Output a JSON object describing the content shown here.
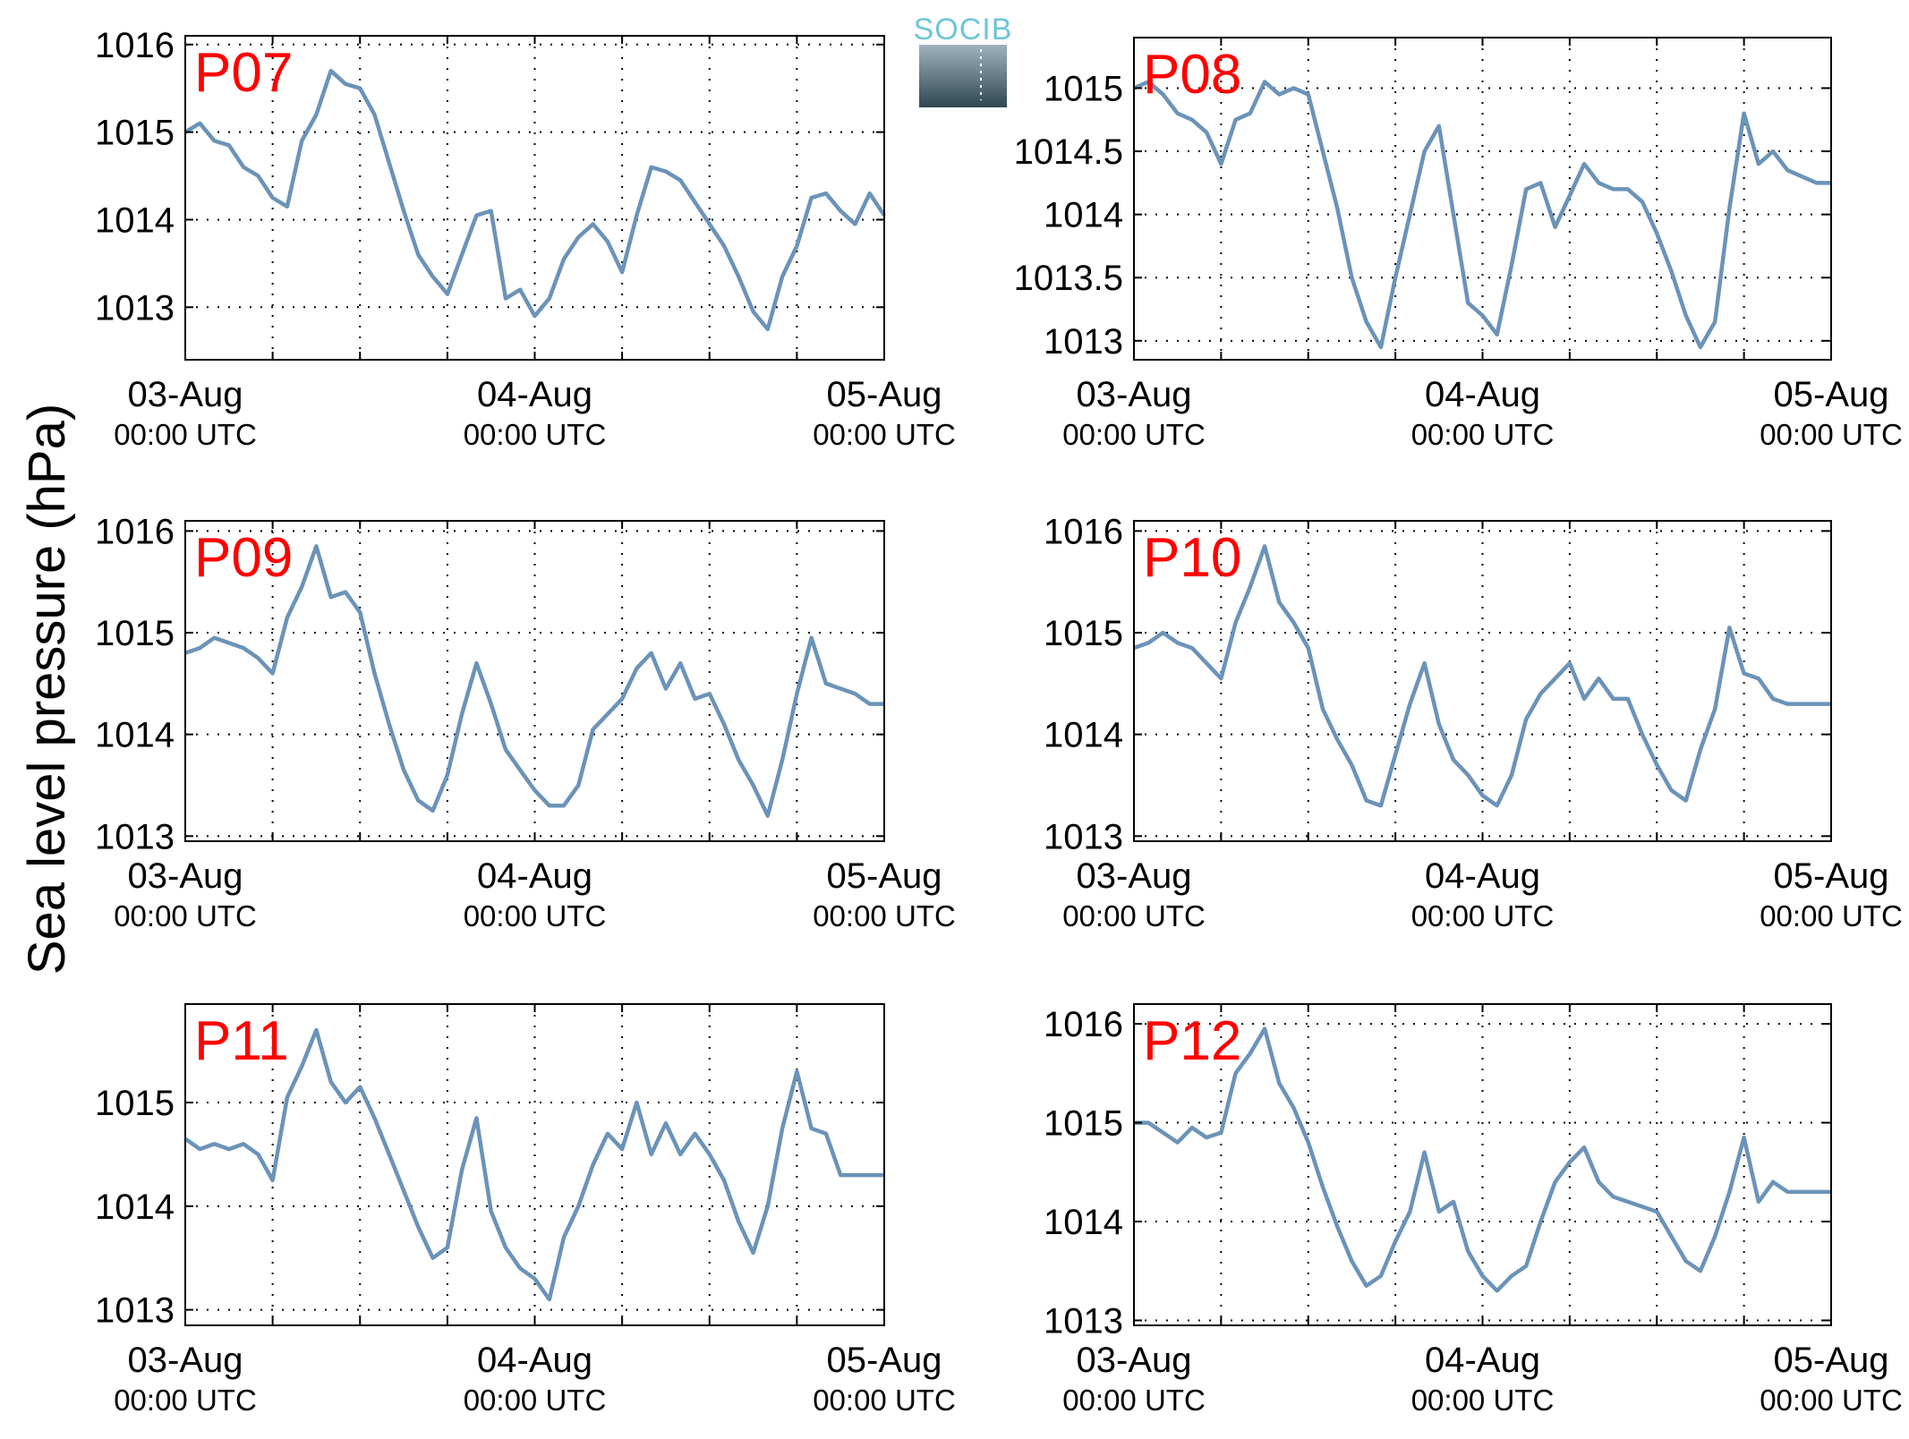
{
  "figure": {
    "ylabel": "Sea level pressure (hPa)",
    "logo_text": "SOCIB",
    "line_color": "#6b93b8",
    "label_color": "#ff0000"
  },
  "chart_data": [
    {
      "type": "line",
      "label": "P07",
      "x_ticks": [
        {
          "date": "03-Aug",
          "time": "00:00 UTC"
        },
        {
          "date": "04-Aug",
          "time": "00:00 UTC"
        },
        {
          "date": "05-Aug",
          "time": "00:00 UTC"
        }
      ],
      "xlim": [
        "2014-08-03T00:00",
        "2014-08-05T00:00"
      ],
      "yticks": [
        "1013",
        "1014",
        "1015",
        "1016"
      ],
      "ytick_values": [
        1013,
        1014,
        1015,
        1016
      ],
      "ylim": [
        1012.4,
        1016.1
      ],
      "grid": true,
      "x_hours": [
        0,
        1,
        2,
        3,
        4,
        5,
        6,
        7,
        8,
        9,
        10,
        11,
        12,
        13,
        14,
        15,
        16,
        17,
        18,
        19,
        20,
        21,
        22,
        23,
        24,
        25,
        26,
        27,
        28,
        29,
        30,
        31,
        32,
        33,
        34,
        35,
        36,
        37,
        38,
        39,
        40,
        41,
        42,
        43,
        44,
        45,
        46,
        47,
        48
      ],
      "y": [
        1015.0,
        1015.1,
        1014.9,
        1014.85,
        1014.6,
        1014.5,
        1014.25,
        1014.15,
        1014.9,
        1015.2,
        1015.7,
        1015.55,
        1015.5,
        1015.2,
        1014.65,
        1014.1,
        1013.6,
        1013.35,
        1013.15,
        1013.6,
        1014.05,
        1014.1,
        1013.1,
        1013.2,
        1012.9,
        1013.1,
        1013.55,
        1013.8,
        1013.95,
        1013.75,
        1013.4,
        1014.05,
        1014.6,
        1014.55,
        1014.45,
        1014.2,
        1013.95,
        1013.7,
        1013.35,
        1012.95,
        1012.75,
        1013.35,
        1013.7,
        1014.25,
        1014.3,
        1014.1,
        1013.95,
        1014.3,
        1014.05
      ]
    },
    {
      "type": "line",
      "label": "P08",
      "x_ticks": [
        {
          "date": "03-Aug",
          "time": "00:00 UTC"
        },
        {
          "date": "04-Aug",
          "time": "00:00 UTC"
        },
        {
          "date": "05-Aug",
          "time": "00:00 UTC"
        }
      ],
      "xlim": [
        "2014-08-03T00:00",
        "2014-08-05T00:00"
      ],
      "yticks": [
        "1013",
        "1013.5",
        "1014",
        "1014.5",
        "1015"
      ],
      "ytick_values": [
        1013,
        1013.5,
        1014,
        1014.5,
        1015
      ],
      "ylim": [
        1012.85,
        1015.4
      ],
      "grid": true,
      "x_hours": [
        0,
        1,
        2,
        3,
        4,
        5,
        6,
        7,
        8,
        9,
        10,
        11,
        12,
        13,
        14,
        15,
        16,
        17,
        18,
        19,
        20,
        21,
        22,
        23,
        24,
        25,
        26,
        27,
        28,
        29,
        30,
        31,
        32,
        33,
        34,
        35,
        36,
        37,
        38,
        39,
        40,
        41,
        42,
        43,
        44,
        45,
        46,
        47,
        48
      ],
      "y": [
        1015.0,
        1015.05,
        1014.95,
        1014.8,
        1014.75,
        1014.65,
        1014.4,
        1014.75,
        1014.8,
        1015.05,
        1014.95,
        1015.0,
        1014.95,
        1014.5,
        1014.05,
        1013.5,
        1013.15,
        1012.95,
        1013.5,
        1014.0,
        1014.5,
        1014.7,
        1014.0,
        1013.3,
        1013.2,
        1013.05,
        1013.6,
        1014.2,
        1014.25,
        1013.9,
        1014.15,
        1014.4,
        1014.25,
        1014.2,
        1014.2,
        1014.1,
        1013.85,
        1013.55,
        1013.2,
        1012.95,
        1013.15,
        1014.05,
        1014.8,
        1014.4,
        1014.5,
        1014.35,
        1014.3,
        1014.25,
        1014.25
      ]
    },
    {
      "type": "line",
      "label": "P09",
      "x_ticks": [
        {
          "date": "03-Aug",
          "time": "00:00 UTC"
        },
        {
          "date": "04-Aug",
          "time": "00:00 UTC"
        },
        {
          "date": "05-Aug",
          "time": "00:00 UTC"
        }
      ],
      "xlim": [
        "2014-08-03T00:00",
        "2014-08-05T00:00"
      ],
      "yticks": [
        "1013",
        "1014",
        "1015",
        "1016"
      ],
      "ytick_values": [
        1013,
        1014,
        1015,
        1016
      ],
      "ylim": [
        1012.95,
        1016.1
      ],
      "grid": true,
      "x_hours": [
        0,
        1,
        2,
        3,
        4,
        5,
        6,
        7,
        8,
        9,
        10,
        11,
        12,
        13,
        14,
        15,
        16,
        17,
        18,
        19,
        20,
        21,
        22,
        23,
        24,
        25,
        26,
        27,
        28,
        29,
        30,
        31,
        32,
        33,
        34,
        35,
        36,
        37,
        38,
        39,
        40,
        41,
        42,
        43,
        44,
        45,
        46,
        47,
        48
      ],
      "y": [
        1014.8,
        1014.85,
        1014.95,
        1014.9,
        1014.85,
        1014.75,
        1014.6,
        1015.15,
        1015.45,
        1015.85,
        1015.35,
        1015.4,
        1015.2,
        1014.6,
        1014.1,
        1013.65,
        1013.35,
        1013.25,
        1013.6,
        1014.2,
        1014.7,
        1014.3,
        1013.85,
        1013.65,
        1013.45,
        1013.3,
        1013.3,
        1013.5,
        1014.05,
        1014.2,
        1014.35,
        1014.65,
        1014.8,
        1014.45,
        1014.7,
        1014.35,
        1014.4,
        1014.1,
        1013.75,
        1013.5,
        1013.2,
        1013.75,
        1014.4,
        1014.95,
        1014.5,
        1014.45,
        1014.4,
        1014.3,
        1014.3
      ]
    },
    {
      "type": "line",
      "label": "P10",
      "x_ticks": [
        {
          "date": "03-Aug",
          "time": "00:00 UTC"
        },
        {
          "date": "04-Aug",
          "time": "00:00 UTC"
        },
        {
          "date": "05-Aug",
          "time": "00:00 UTC"
        }
      ],
      "xlim": [
        "2014-08-03T00:00",
        "2014-08-05T00:00"
      ],
      "yticks": [
        "1013",
        "1014",
        "1015",
        "1016"
      ],
      "ytick_values": [
        1013,
        1014,
        1015,
        1016
      ],
      "ylim": [
        1012.95,
        1016.1
      ],
      "grid": true,
      "x_hours": [
        0,
        1,
        2,
        3,
        4,
        5,
        6,
        7,
        8,
        9,
        10,
        11,
        12,
        13,
        14,
        15,
        16,
        17,
        18,
        19,
        20,
        21,
        22,
        23,
        24,
        25,
        26,
        27,
        28,
        29,
        30,
        31,
        32,
        33,
        34,
        35,
        36,
        37,
        38,
        39,
        40,
        41,
        42,
        43,
        44,
        45,
        46,
        47,
        48
      ],
      "y": [
        1014.85,
        1014.9,
        1015.0,
        1014.9,
        1014.85,
        1014.7,
        1014.55,
        1015.1,
        1015.45,
        1015.85,
        1015.3,
        1015.1,
        1014.85,
        1014.25,
        1013.95,
        1013.7,
        1013.35,
        1013.3,
        1013.8,
        1014.3,
        1014.7,
        1014.1,
        1013.75,
        1013.6,
        1013.4,
        1013.3,
        1013.6,
        1014.15,
        1014.4,
        1014.55,
        1014.7,
        1014.35,
        1014.55,
        1014.35,
        1014.35,
        1014.0,
        1013.7,
        1013.45,
        1013.35,
        1013.85,
        1014.25,
        1015.05,
        1014.6,
        1014.55,
        1014.35,
        1014.3,
        1014.3,
        1014.3,
        1014.3
      ]
    },
    {
      "type": "line",
      "label": "P11",
      "x_ticks": [
        {
          "date": "03-Aug",
          "time": "00:00 UTC"
        },
        {
          "date": "04-Aug",
          "time": "00:00 UTC"
        },
        {
          "date": "05-Aug",
          "time": "00:00 UTC"
        }
      ],
      "xlim": [
        "2014-08-03T00:00",
        "2014-08-05T00:00"
      ],
      "yticks": [
        "1013",
        "1014",
        "1015"
      ],
      "ytick_values": [
        1013,
        1014,
        1015
      ],
      "ylim": [
        1012.85,
        1015.95
      ],
      "grid": true,
      "x_hours": [
        0,
        1,
        2,
        3,
        4,
        5,
        6,
        7,
        8,
        9,
        10,
        11,
        12,
        13,
        14,
        15,
        16,
        17,
        18,
        19,
        20,
        21,
        22,
        23,
        24,
        25,
        26,
        27,
        28,
        29,
        30,
        31,
        32,
        33,
        34,
        35,
        36,
        37,
        38,
        39,
        40,
        41,
        42,
        43,
        44,
        45,
        46,
        47,
        48
      ],
      "y": [
        1014.65,
        1014.55,
        1014.6,
        1014.55,
        1014.6,
        1014.5,
        1014.25,
        1015.05,
        1015.35,
        1015.7,
        1015.2,
        1015.0,
        1015.15,
        1014.85,
        1014.5,
        1014.15,
        1013.8,
        1013.5,
        1013.6,
        1014.35,
        1014.85,
        1013.95,
        1013.6,
        1013.4,
        1013.3,
        1013.1,
        1013.7,
        1014.0,
        1014.4,
        1014.7,
        1014.55,
        1015.0,
        1014.5,
        1014.8,
        1014.5,
        1014.7,
        1014.5,
        1014.25,
        1013.85,
        1013.55,
        1014.0,
        1014.75,
        1015.3,
        1014.75,
        1014.7,
        1014.3,
        1014.3,
        1014.3,
        1014.3
      ]
    },
    {
      "type": "line",
      "label": "P12",
      "x_ticks": [
        {
          "date": "03-Aug",
          "time": "00:00 UTC"
        },
        {
          "date": "04-Aug",
          "time": "00:00 UTC"
        },
        {
          "date": "05-Aug",
          "time": "00:00 UTC"
        }
      ],
      "xlim": [
        "2014-08-03T00:00",
        "2014-08-05T00:00"
      ],
      "yticks": [
        "1013",
        "1014",
        "1015",
        "1016"
      ],
      "ytick_values": [
        1013,
        1014,
        1015,
        1016
      ],
      "ylim": [
        1012.95,
        1016.2
      ],
      "grid": true,
      "x_hours": [
        0,
        1,
        2,
        3,
        4,
        5,
        6,
        7,
        8,
        9,
        10,
        11,
        12,
        13,
        14,
        15,
        16,
        17,
        18,
        19,
        20,
        21,
        22,
        23,
        24,
        25,
        26,
        27,
        28,
        29,
        30,
        31,
        32,
        33,
        34,
        35,
        36,
        37,
        38,
        39,
        40,
        41,
        42,
        43,
        44,
        45,
        46,
        47,
        48
      ],
      "y": [
        1015.0,
        1015.0,
        1014.9,
        1014.8,
        1014.95,
        1014.85,
        1014.9,
        1015.5,
        1015.7,
        1015.95,
        1015.4,
        1015.15,
        1014.8,
        1014.35,
        1013.95,
        1013.6,
        1013.35,
        1013.45,
        1013.8,
        1014.1,
        1014.7,
        1014.1,
        1014.2,
        1013.7,
        1013.45,
        1013.3,
        1013.45,
        1013.55,
        1014.0,
        1014.4,
        1014.6,
        1014.75,
        1014.4,
        1014.25,
        1014.2,
        1014.15,
        1014.1,
        1013.85,
        1013.6,
        1013.5,
        1013.85,
        1014.3,
        1014.85,
        1014.2,
        1014.4,
        1014.3,
        1014.3,
        1014.3,
        1014.3
      ]
    }
  ]
}
